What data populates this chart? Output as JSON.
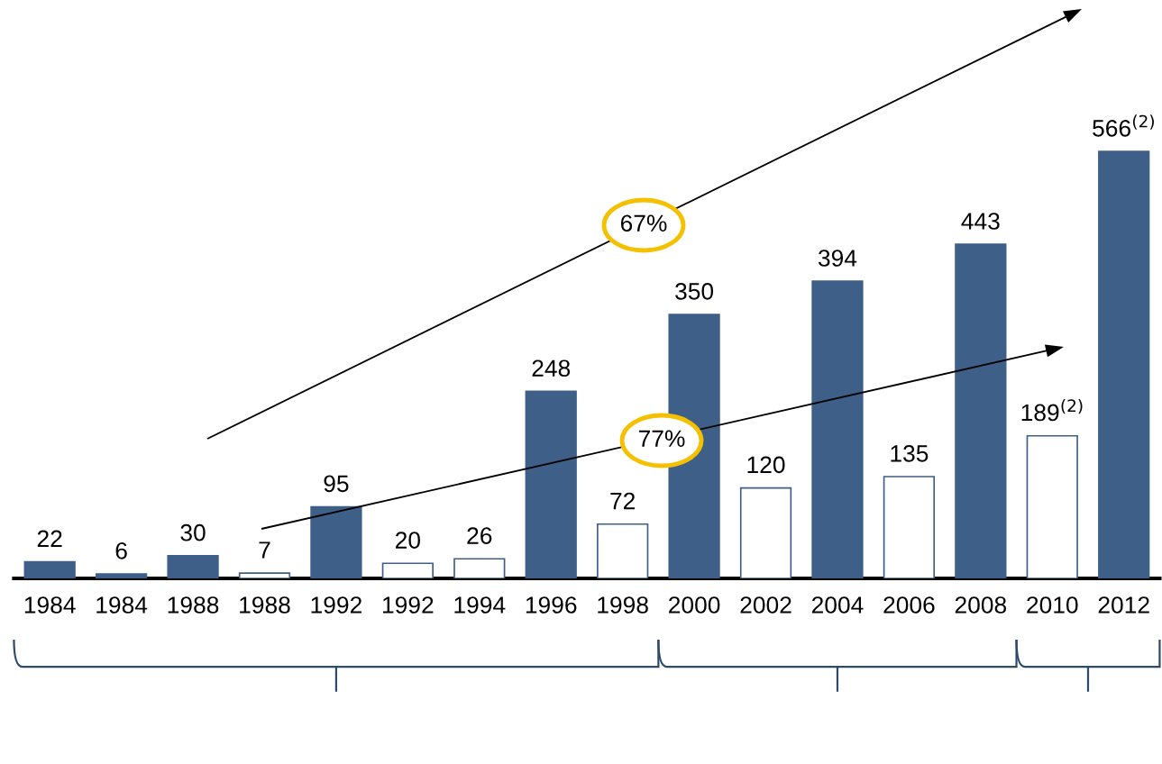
{
  "chart_data": {
    "type": "bar",
    "categories": [
      "1984",
      "1984",
      "1988",
      "1988",
      "1992",
      "1992",
      "1994",
      "1996",
      "1998",
      "2000",
      "2002",
      "2004",
      "2006",
      "2008",
      "2010",
      "2012"
    ],
    "values": [
      22,
      6,
      30,
      7,
      95,
      20,
      26,
      248,
      72,
      350,
      120,
      394,
      135,
      443,
      189,
      566
    ],
    "colors": [
      "#3e5f88",
      "#3e5f88",
      "#3e5f88",
      "#ffffff",
      "#3e5f88",
      "#ffffff",
      "#ffffff",
      "#3e5f88",
      "#ffffff",
      "#3e5f88",
      "#ffffff",
      "#3e5f88",
      "#ffffff",
      "#3e5f88",
      "#ffffff",
      "#3e5f88"
    ],
    "value_labels": [
      "22",
      "6",
      "30",
      "7",
      "95",
      "20",
      "26",
      "248",
      "72",
      "350",
      "120",
      "394",
      "135",
      "443",
      "189$^{(2)}$",
      "566$^{(2)}$"
    ],
    "annotations": [
      "67%",
      "77%"
    ],
    "grid": false,
    "legend": false
  }
}
